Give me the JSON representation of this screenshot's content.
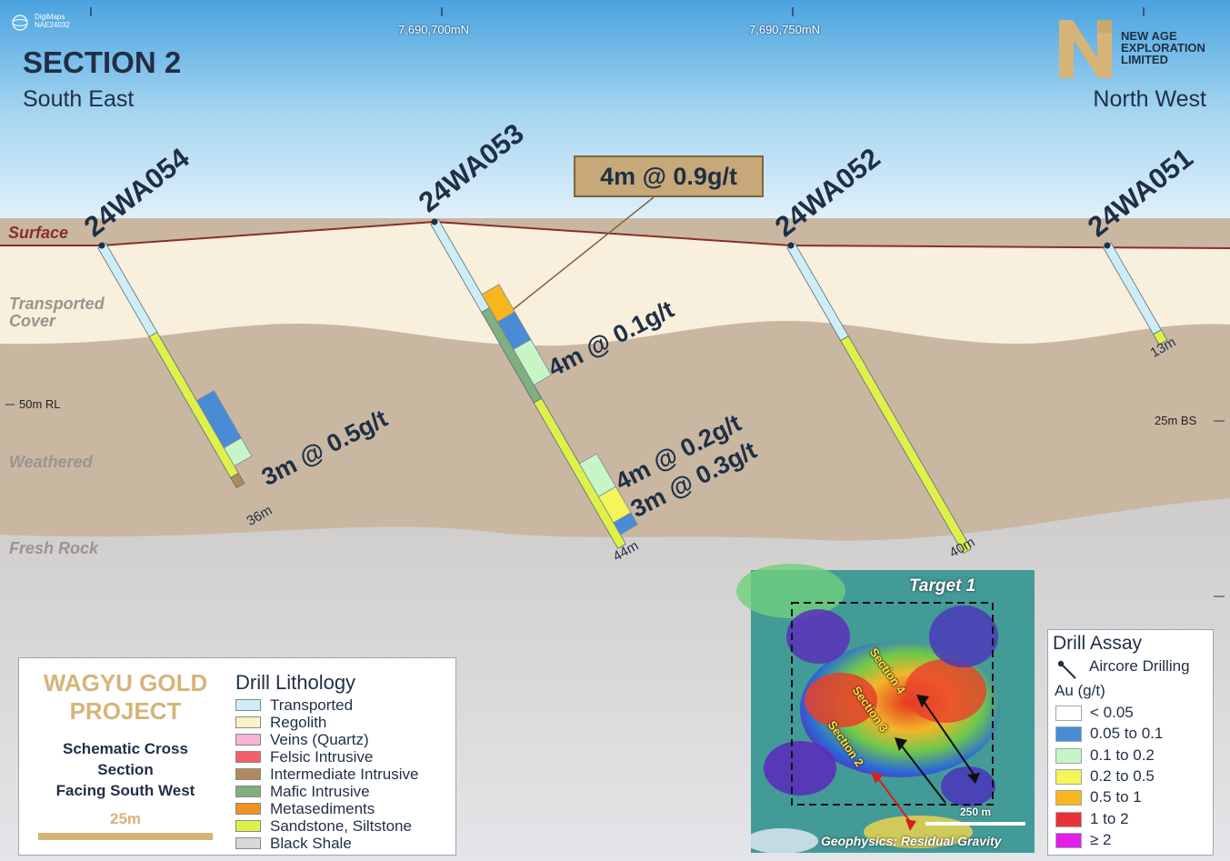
{
  "header": {
    "title": "SECTION 2",
    "left_direction": "South East",
    "right_direction": "North West",
    "company": "NEW AGE EXPLORATION LIMITED",
    "digimaps_lines": [
      "DigiMaps",
      "NAE24032"
    ],
    "northings": [
      "7,690,700mN",
      "7,690,750mN"
    ]
  },
  "layers": {
    "surface": "Surface",
    "transported": [
      "Transported",
      "Cover"
    ],
    "weathered": "Weathered",
    "fresh": "Fresh Rock"
  },
  "scale_marks": {
    "left": "50m RL",
    "right": "25m BS"
  },
  "holes": [
    {
      "id": "24WA054",
      "depth": "36m"
    },
    {
      "id": "24WA053",
      "depth": "44m"
    },
    {
      "id": "24WA052",
      "depth": "40m"
    },
    {
      "id": "24WA051",
      "depth": "13m"
    }
  ],
  "intervals": [
    {
      "hole": "24WA054",
      "text": "3m @ 0.5g/t"
    },
    {
      "hole": "24WA053",
      "text": "4m @ 0.1g/t"
    },
    {
      "hole": "24WA053",
      "text": "4m @ 0.2g/t"
    },
    {
      "hole": "24WA053",
      "text": "3m @ 0.3g/t"
    }
  ],
  "callout": "4m @ 0.9g/t",
  "project": {
    "name_lines": [
      "WAGYU GOLD",
      "PROJECT"
    ],
    "description_lines": [
      "Schematic Cross",
      "Section",
      "Facing South West"
    ],
    "scale_label": "25m"
  },
  "lithology_legend": {
    "title": "Drill Lithology",
    "items": [
      {
        "label": "Transported",
        "color": "#cdeef6"
      },
      {
        "label": "Regolith",
        "color": "#fbf3c8"
      },
      {
        "label": "Veins (Quartz)",
        "color": "#f6b3d2"
      },
      {
        "label": "Felsic Intrusive",
        "color": "#f2606a"
      },
      {
        "label": "Intermediate Intrusive",
        "color": "#b08a5f"
      },
      {
        "label": "Mafic Intrusive",
        "color": "#7fb07d"
      },
      {
        "label": "Metasediments",
        "color": "#f2931f"
      },
      {
        "label": "Sandstone, Siltstone",
        "color": "#dff04a"
      },
      {
        "label": "Black Shale",
        "color": "#d8d8d8"
      }
    ]
  },
  "assay_legend": {
    "title": "Drill Assay",
    "aircore": "Aircore Drilling",
    "unit": "Au (g/t)",
    "items": [
      {
        "label": "< 0.05",
        "color": "#ffffff"
      },
      {
        "label": "0.05 to 0.1",
        "color": "#4a8bd6"
      },
      {
        "label": "0.1 to 0.2",
        "color": "#c8f5c6"
      },
      {
        "label": "0.2 to 0.5",
        "color": "#f3f55a"
      },
      {
        "label": "0.5 to 1",
        "color": "#f7b51e"
      },
      {
        "label": "1 to 2",
        "color": "#e8313a"
      },
      {
        "label": "≥ 2",
        "color": "#e21fe8"
      }
    ]
  },
  "inset": {
    "title": "Target 1",
    "sections": [
      "Section 4",
      "Section 3",
      "Section 2"
    ],
    "scale_label": "250 m",
    "caption": "Geophysics: Residual Gravity"
  }
}
